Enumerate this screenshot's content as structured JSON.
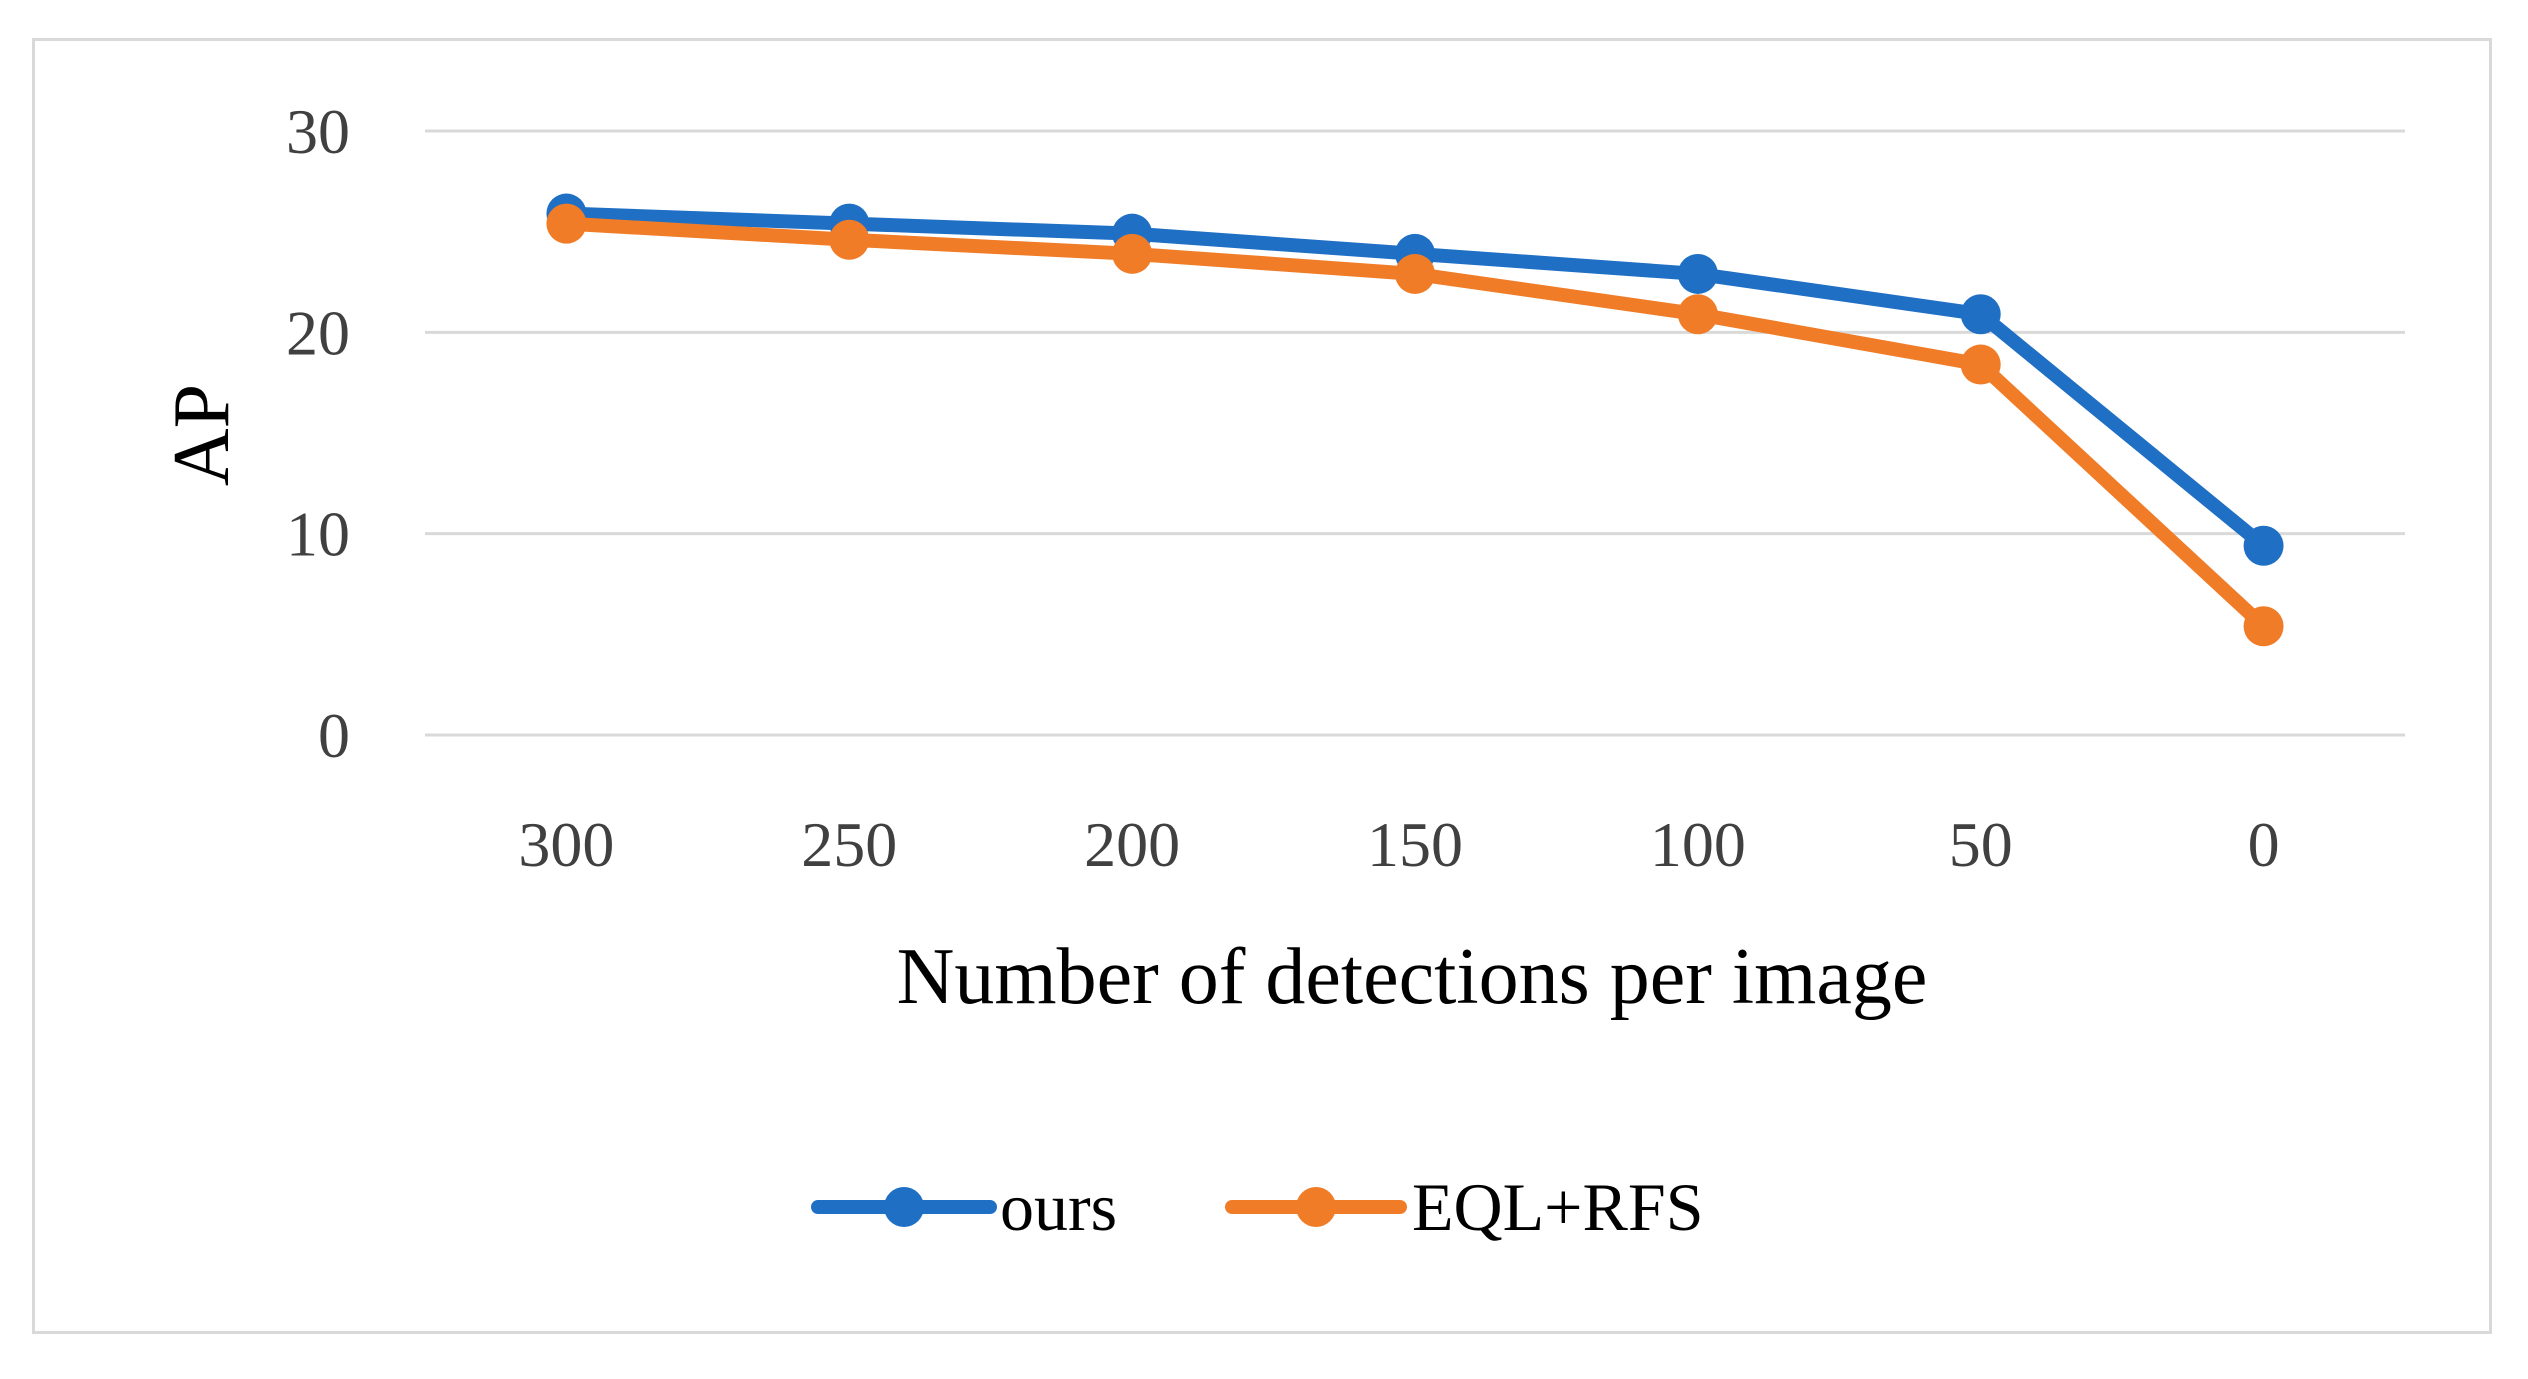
{
  "chart_data": {
    "type": "line",
    "title": "",
    "xlabel": "Number of detections per image",
    "ylabel": "AP",
    "categories": [
      "300",
      "250",
      "200",
      "150",
      "100",
      "50",
      "0"
    ],
    "ylim": [
      0,
      30
    ],
    "yticks": [
      "0",
      "10",
      "20",
      "30"
    ],
    "grid": true,
    "legend_position": "bottom",
    "series": [
      {
        "name": "ours",
        "color": "#1f6fc5",
        "values": [
          25.9,
          25.4,
          24.9,
          23.9,
          22.9,
          20.9,
          9.4
        ]
      },
      {
        "name": "EQL+RFS",
        "color": "#f07c28",
        "values": [
          25.4,
          24.6,
          23.9,
          22.9,
          20.9,
          18.4,
          5.4
        ]
      }
    ]
  }
}
